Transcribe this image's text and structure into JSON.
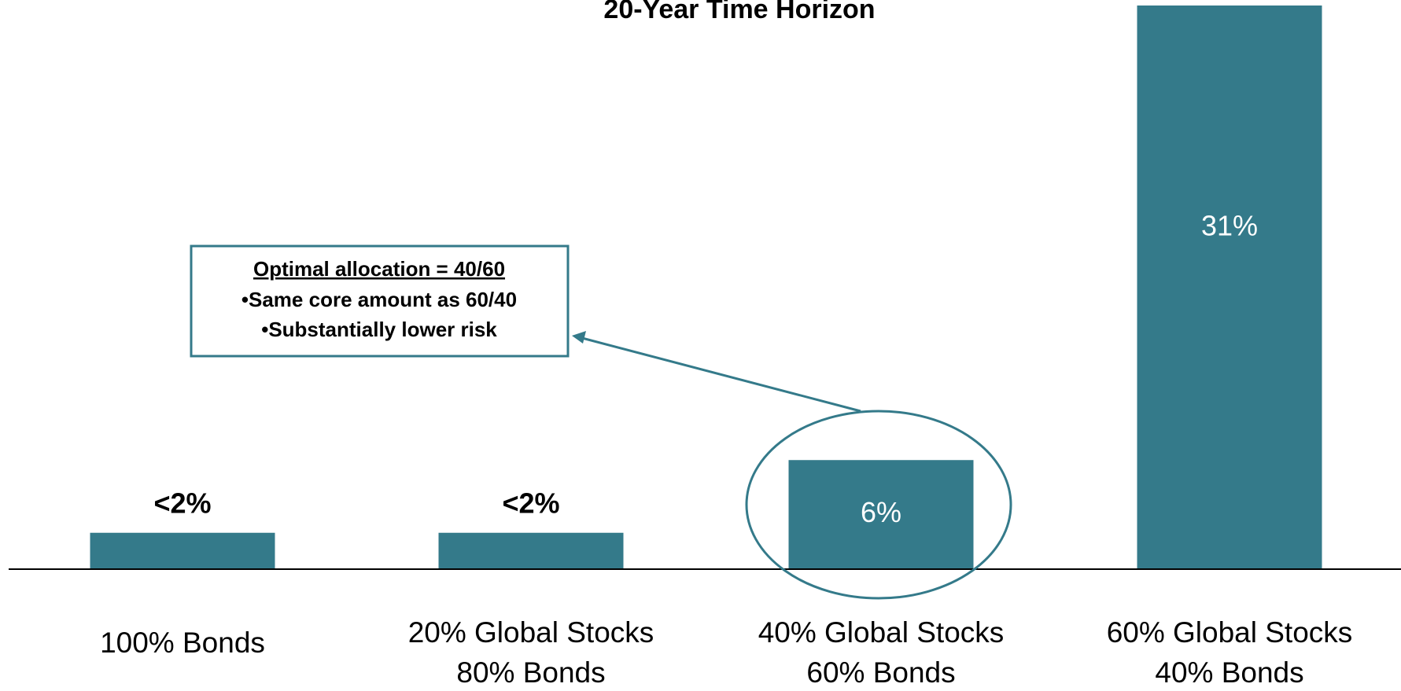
{
  "chart_data": {
    "type": "bar",
    "title": "20-Year Time Horizon",
    "categories": [
      [
        "100% Bonds"
      ],
      [
        "20% Global Stocks",
        "80% Bonds"
      ],
      [
        "40% Global Stocks",
        "60% Bonds"
      ],
      [
        "60% Global Stocks",
        "40% Bonds"
      ]
    ],
    "values": [
      2,
      2,
      6,
      31
    ],
    "value_labels": [
      "<2%",
      "<2%",
      "6%",
      "31%"
    ],
    "color": "#347a8a",
    "annotation": {
      "lines": [
        "Optimal allocation = 40/60",
        "•Same core amount as 60/40",
        "•Substantially lower risk"
      ]
    }
  }
}
